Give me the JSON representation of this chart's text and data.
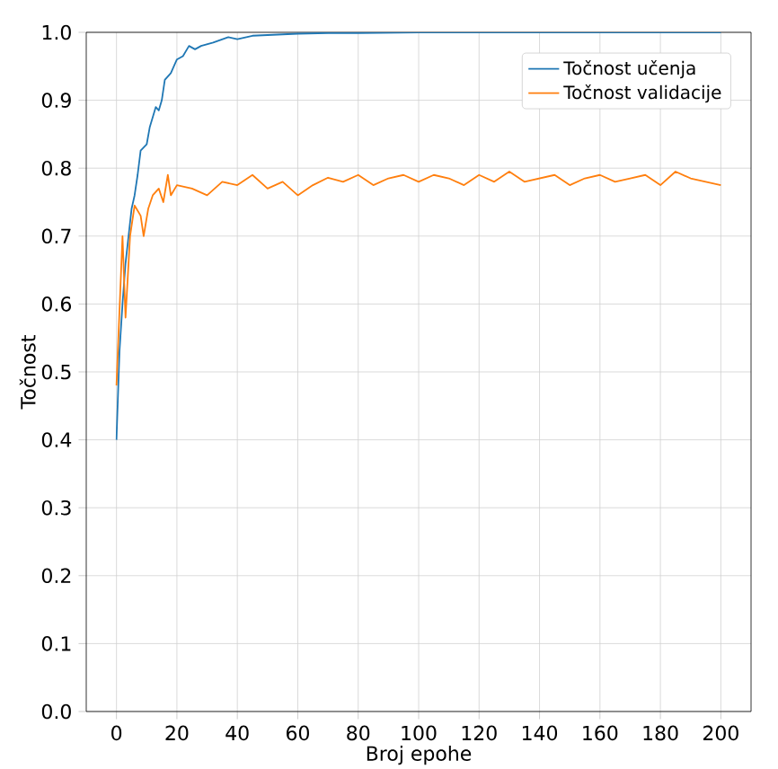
{
  "chart_data": {
    "type": "line",
    "xlabel": "Broj epohe",
    "ylabel": "Točnost",
    "xlim": [
      -10,
      210
    ],
    "ylim": [
      0,
      1.0
    ],
    "xticks": [
      0,
      20,
      40,
      60,
      80,
      100,
      120,
      140,
      160,
      180,
      200
    ],
    "yticks": [
      {
        "value": 0,
        "label": "0.0"
      },
      {
        "value": 0.1,
        "label": "0.1"
      },
      {
        "value": 0.2,
        "label": "0.2"
      },
      {
        "value": 0.3,
        "label": "0.3"
      },
      {
        "value": 0.4,
        "label": "0.4"
      },
      {
        "value": 0.5,
        "label": "0.5"
      },
      {
        "value": 0.6,
        "label": "0.6"
      },
      {
        "value": 0.7,
        "label": "0.7"
      },
      {
        "value": 0.8,
        "label": "0.8"
      },
      {
        "value": 0.9,
        "label": "0.9"
      },
      {
        "value": 1.0,
        "label": "1.0"
      }
    ],
    "grid": true,
    "legend": "top right",
    "marker": "none",
    "line_style": "solid",
    "series": [
      {
        "name": "Točnost učenja",
        "color": "#1f77b4",
        "x": [
          0,
          1,
          2,
          3,
          4,
          5,
          6,
          7,
          8,
          10,
          11,
          13,
          14,
          15,
          16,
          18,
          20,
          22,
          24,
          26,
          28,
          32,
          37,
          40,
          45,
          50,
          60,
          70,
          80,
          100,
          120,
          140,
          160,
          180,
          200
        ],
        "values": [
          0.4,
          0.53,
          0.6,
          0.66,
          0.7,
          0.74,
          0.76,
          0.79,
          0.826,
          0.835,
          0.86,
          0.89,
          0.885,
          0.9,
          0.93,
          0.94,
          0.96,
          0.965,
          0.98,
          0.975,
          0.98,
          0.985,
          0.993,
          0.99,
          0.995,
          0.996,
          0.998,
          0.999,
          0.999,
          1.0,
          1.0,
          1.0,
          1.0,
          1.0,
          1.0
        ]
      },
      {
        "name": "Točnost validacije",
        "color": "#ff7f0e",
        "x": [
          0,
          2,
          3,
          4.5,
          6,
          8,
          9,
          10.5,
          12,
          14,
          15.5,
          17,
          18,
          20,
          25,
          30,
          35,
          40,
          45,
          50,
          55,
          60,
          65,
          70,
          75,
          80,
          85,
          90,
          95,
          100,
          105,
          110,
          115,
          120,
          125,
          130,
          135,
          140,
          145,
          150,
          155,
          160,
          165,
          170,
          175,
          180,
          185,
          190,
          195,
          200
        ],
        "values": [
          0.48,
          0.7,
          0.58,
          0.7,
          0.745,
          0.73,
          0.7,
          0.74,
          0.76,
          0.77,
          0.75,
          0.79,
          0.76,
          0.775,
          0.77,
          0.76,
          0.78,
          0.775,
          0.79,
          0.77,
          0.78,
          0.76,
          0.775,
          0.786,
          0.78,
          0.79,
          0.775,
          0.785,
          0.79,
          0.78,
          0.79,
          0.785,
          0.775,
          0.79,
          0.78,
          0.795,
          0.78,
          0.785,
          0.79,
          0.775,
          0.785,
          0.79,
          0.78,
          0.785,
          0.79,
          0.775,
          0.795,
          0.785,
          0.78,
          0.775
        ]
      }
    ]
  }
}
